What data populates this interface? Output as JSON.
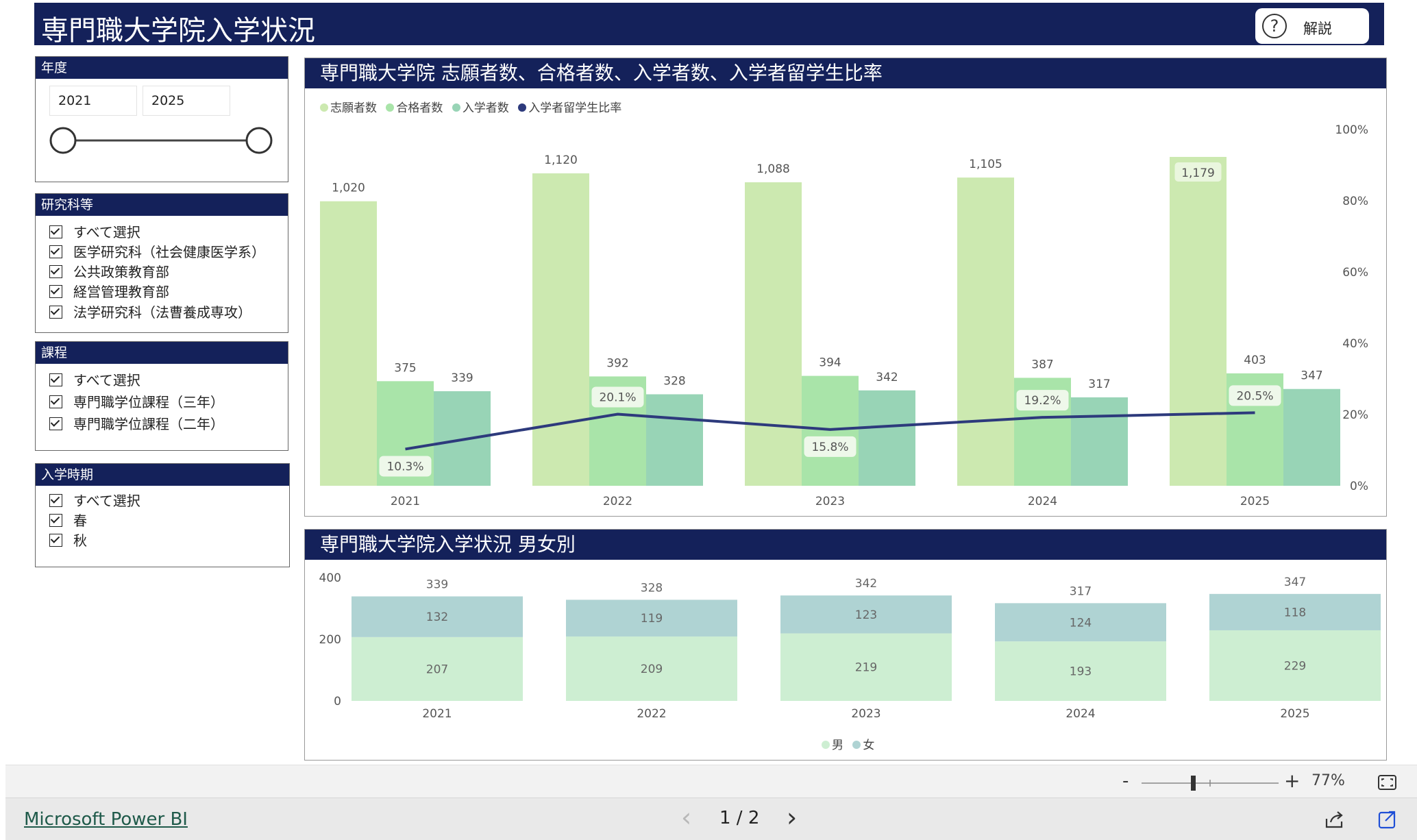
{
  "report": {
    "title": "専門職大学院入学状況",
    "help_label": "解説"
  },
  "filters": {
    "year": {
      "title": "年度",
      "from": "2021",
      "to": "2025"
    },
    "program": {
      "title": "研究科等",
      "items": [
        "すべて選択",
        "医学研究科（社会健康医学系）",
        "公共政策教育部",
        "経営管理教育部",
        "法学研究科（法曹養成専攻）"
      ]
    },
    "course": {
      "title": "課程",
      "items": [
        "すべて選択",
        "専門職学位課程（三年）",
        "専門職学位課程（二年）"
      ]
    },
    "term": {
      "title": "入学時期",
      "items": [
        "すべて選択",
        "春",
        "秋"
      ]
    }
  },
  "chart1": {
    "title": "専門職大学院 志願者数、合格者数、入学者数、入学者留学生比率",
    "legend": [
      "志願者数",
      "合格者数",
      "入学者数",
      "入学者留学生比率"
    ]
  },
  "chart2": {
    "title": "専門職大学院入学状況 男女別",
    "legend": [
      "男",
      "女"
    ]
  },
  "colors": {
    "header_navy": "#14215a",
    "applicants": "#cce9b0",
    "passed": "#a9e4a9",
    "enrolled": "#98d4b6",
    "ratio_line": "#2d3a7c",
    "male": "#cdeed2",
    "female": "#afd3d3"
  },
  "chart_data": [
    {
      "type": "bar",
      "categories": [
        "2021",
        "2022",
        "2023",
        "2024",
        "2025"
      ],
      "series": [
        {
          "name": "志願者数",
          "values": [
            1020,
            1120,
            1088,
            1105,
            1179
          ]
        },
        {
          "name": "合格者数",
          "values": [
            375,
            392,
            394,
            387,
            403
          ]
        },
        {
          "name": "入学者数",
          "values": [
            339,
            328,
            342,
            317,
            347
          ]
        },
        {
          "name": "入学者留学生比率",
          "type": "line",
          "axis": "right",
          "values": [
            10.3,
            20.1,
            15.8,
            19.2,
            20.5
          ],
          "labels": [
            "10.3%",
            "20.1%",
            "15.8%",
            "19.2%",
            "20.5%"
          ]
        }
      ],
      "ylim": [
        0,
        1179
      ],
      "y2ticks": [
        "0%",
        "20%",
        "40%",
        "60%",
        "80%",
        "100%"
      ],
      "y2lim": [
        0,
        100
      ]
    },
    {
      "type": "bar",
      "stacked": true,
      "categories": [
        "2021",
        "2022",
        "2023",
        "2024",
        "2025"
      ],
      "series": [
        {
          "name": "男",
          "values": [
            207,
            209,
            219,
            193,
            229
          ]
        },
        {
          "name": "女",
          "values": [
            132,
            119,
            123,
            124,
            118
          ]
        }
      ],
      "totals": [
        339,
        328,
        342,
        317,
        347
      ],
      "yticks": [
        "0",
        "200",
        "400"
      ],
      "ylim": [
        0,
        400
      ]
    }
  ],
  "zoom": {
    "minus": "-",
    "plus": "+",
    "level": "77%"
  },
  "footer": {
    "brand": "Microsoft Power BI",
    "page": "1 / 2",
    "prev": "‹",
    "next": "›"
  }
}
